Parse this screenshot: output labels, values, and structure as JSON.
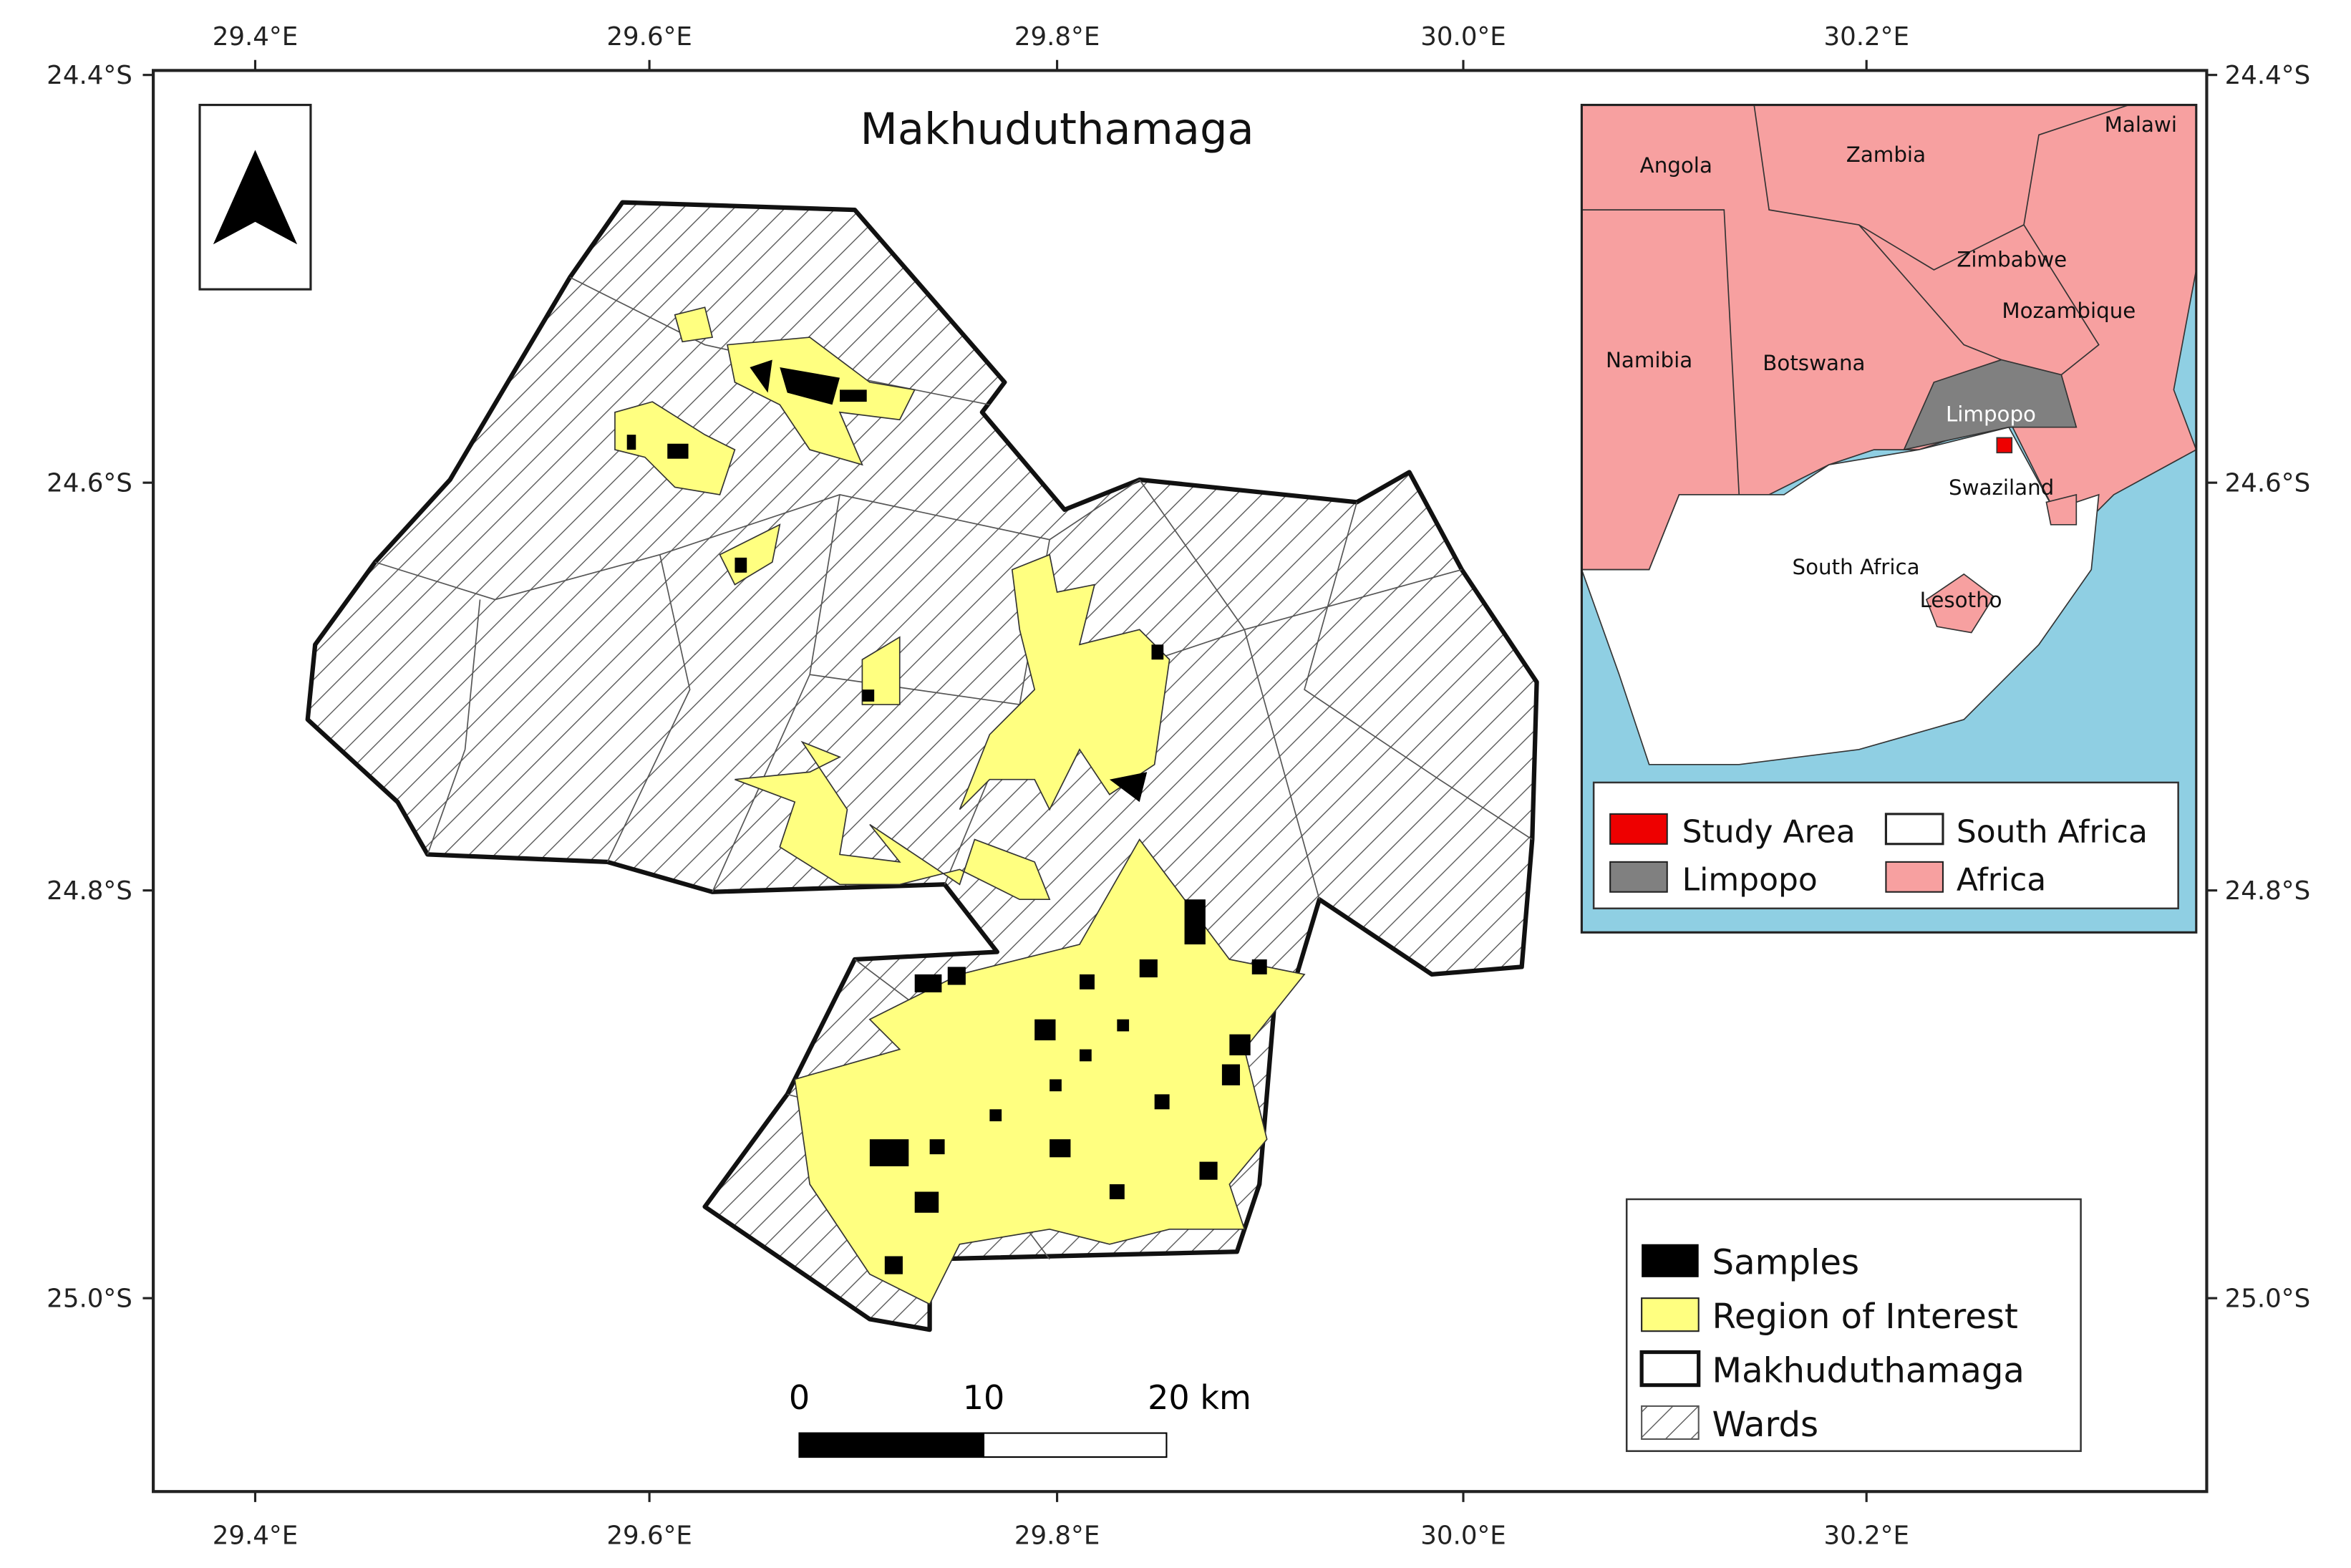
{
  "map": {
    "title": "Makhuduthamaga",
    "lon_labels": [
      "29.4°E",
      "29.6°E",
      "29.8°E",
      "30.0°E",
      "30.2°E"
    ],
    "lat_labels": [
      "24.4°S",
      "24.6°S",
      "24.8°S",
      "25.0°S"
    ],
    "inset": {
      "countries": [
        "Angola",
        "Zambia",
        "Malawi",
        "Zimbabwe",
        "Mozambique",
        "Namibia",
        "Botswana",
        "Limpopo",
        "Swaziland",
        "South Africa",
        "Lesotho"
      ],
      "legend": [
        "Study Area",
        "South Africa",
        "Limpopo",
        "Africa"
      ]
    },
    "legend": [
      "Samples",
      "Region of Interest",
      "Makhuduthamaga",
      "Wards"
    ],
    "scale_bar": [
      "0",
      "10",
      "20 km"
    ]
  }
}
